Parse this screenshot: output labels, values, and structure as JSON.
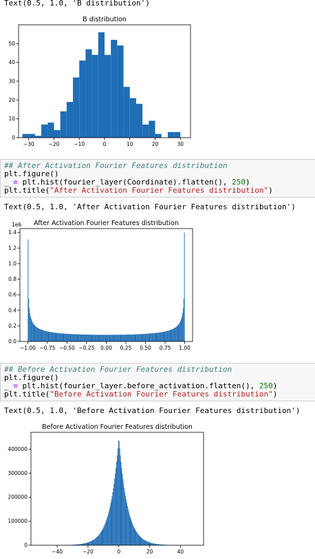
{
  "outputs": {
    "out1": "Text(0.5, 1.0, 'B distribution')",
    "out2": "Text(0.5, 1.0, 'After Activation Fourier Features distribution')",
    "out3": "Text(0.5, 1.0, 'Before Activation Fourier Features distribution')"
  },
  "cells": {
    "cell1": {
      "comment": "## After Activation Fourier Features distribution",
      "line2": "plt.figure()",
      "line3_pre": "_ ",
      "line3_op": "=",
      "line3_mid": " plt.hist(fourier_layer(Coordinate).flatten(), ",
      "line3_num": "250",
      "line3_post": ")",
      "line4_pre": "plt.title(",
      "line4_str": "\"After Activation Fourier Features distribution\"",
      "line4_post": ")"
    },
    "cell2": {
      "comment": "## Before Activation Fourier Features distribution",
      "line2": "plt.figure()",
      "line3_pre": "_ ",
      "line3_op": "=",
      "line3_mid": " plt.hist(fourier_layer.before_activation.flatten(), ",
      "line3_num": "250",
      "line3_post": ")",
      "line4_pre": "plt.title(",
      "line4_str": "\"Before Activation Fourier Features distribution\"",
      "line4_post": ")"
    }
  },
  "colors": {
    "bar": "#1f6db5",
    "cell_bg": "#f7f7f7"
  },
  "chart_data": [
    {
      "type": "bar",
      "title": "B distribution",
      "xlabel": "",
      "ylabel": "",
      "bin_width": 2.5,
      "bin_starts": [
        -32.5,
        -30,
        -27.5,
        -25,
        -22.5,
        -20,
        -17.5,
        -15,
        -12.5,
        -10,
        -7.5,
        -5,
        -2.5,
        0,
        2.5,
        5,
        7.5,
        10,
        12.5,
        15,
        17.5,
        20,
        22.5,
        25,
        27.5,
        30
      ],
      "values": [
        2,
        2,
        1,
        7,
        8,
        4,
        14,
        19,
        32,
        41,
        47,
        44,
        56,
        44,
        52,
        49,
        27,
        21,
        18,
        7,
        9,
        2,
        0,
        3,
        3,
        0
      ],
      "xlim": [
        -34,
        34
      ],
      "ylim": [
        0,
        60
      ],
      "xticks": [
        -30,
        -20,
        -10,
        0,
        10,
        20,
        30
      ],
      "yticks": [
        0,
        10,
        20,
        30,
        40,
        50
      ]
    },
    {
      "type": "bar",
      "title": "After Activation Fourier Features distribution",
      "xlabel": "",
      "ylabel": "",
      "scale_label": "1e6",
      "bin_width": 0.008,
      "shape": "arcsine",
      "bins": 250,
      "edge_values": [
        1.31,
        1.4
      ],
      "center_value": 0.085,
      "xlim": [
        -1.1,
        1.1
      ],
      "ylim": [
        0,
        1.45
      ],
      "xticks": [
        -1.0,
        -0.75,
        -0.5,
        -0.25,
        0.0,
        0.25,
        0.5,
        0.75,
        1.0
      ],
      "xtick_labels": [
        "−1.00",
        "−0.75",
        "−0.50",
        "−0.25",
        "0.00",
        "0.25",
        "0.50",
        "0.75",
        "1.00"
      ],
      "yticks": [
        0.0,
        0.2,
        0.4,
        0.6,
        0.8,
        1.0,
        1.2,
        1.4
      ],
      "ytick_labels": [
        "0.0",
        "0.2",
        "0.4",
        "0.6",
        "0.8",
        "1.0",
        "1.2",
        "1.4"
      ]
    },
    {
      "type": "bar",
      "title": "Before Activation Fourier Features distribution",
      "xlabel": "",
      "ylabel": "",
      "shape": "laplace",
      "bins": 250,
      "peak_value": 452000,
      "scale": 5.5,
      "data_range": [
        -52,
        52
      ],
      "xlim": [
        -57,
        55
      ],
      "ylim": [
        0,
        470000
      ],
      "xticks": [
        -40,
        -20,
        0,
        20,
        40
      ],
      "xtick_labels": [
        "−40",
        "−20",
        "0",
        "20",
        "40"
      ],
      "yticks": [
        0,
        100000,
        200000,
        300000,
        400000
      ],
      "ytick_labels": [
        "0",
        "100000",
        "200000",
        "300000",
        "400000"
      ]
    }
  ]
}
